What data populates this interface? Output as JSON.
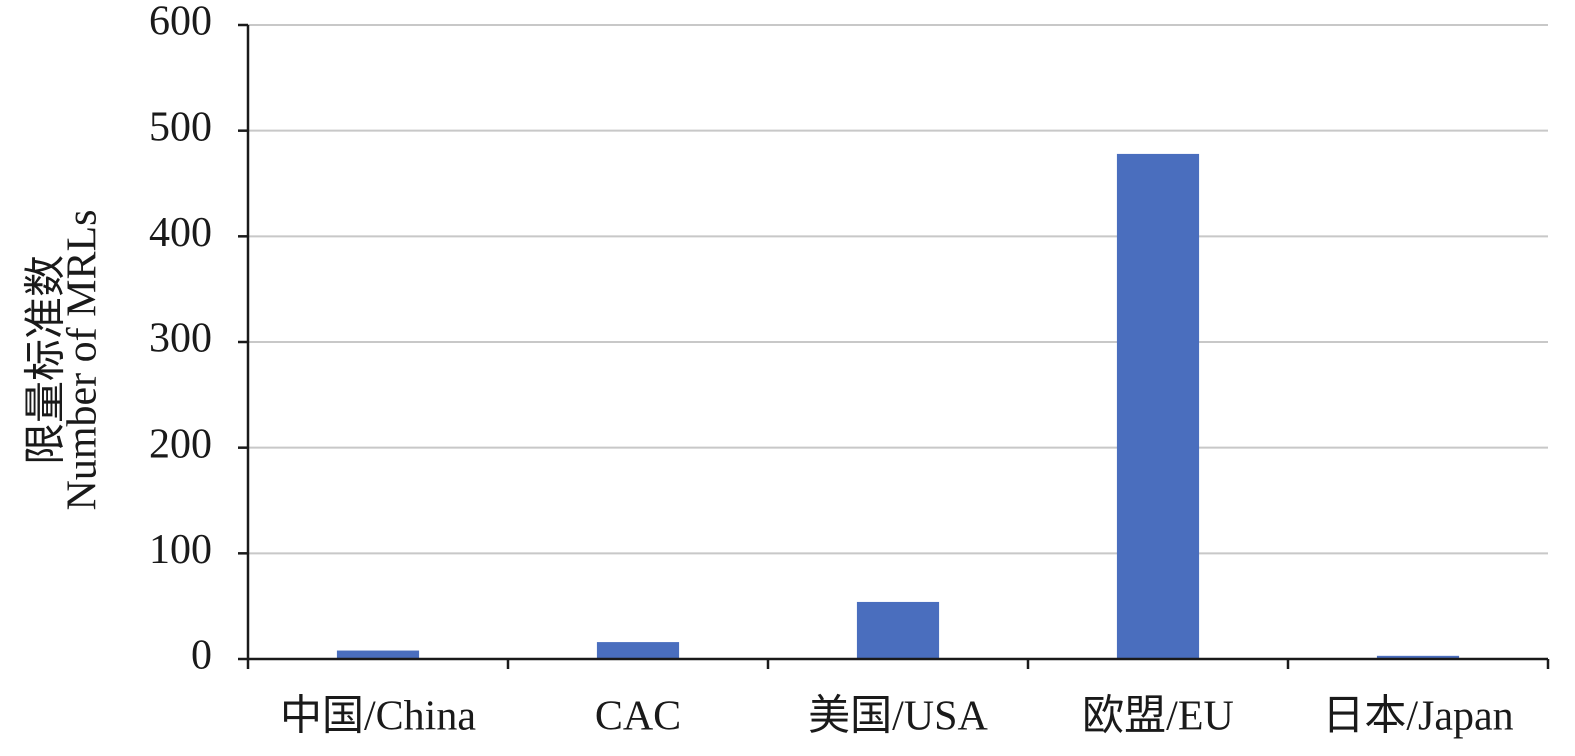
{
  "chart_data": {
    "type": "bar",
    "y_label": [
      "限量标准数",
      "Number of MRLs"
    ],
    "categories": [
      "中国/China",
      "CAC",
      "美国/USA",
      "欧盟/EU",
      "日本/Japan"
    ],
    "values": [
      8,
      16,
      54,
      478,
      3
    ],
    "color": "#4a6ebe",
    "ylim": [
      0,
      600
    ],
    "yticks": [
      0,
      100,
      200,
      300,
      400,
      500,
      600
    ],
    "grid": true
  }
}
